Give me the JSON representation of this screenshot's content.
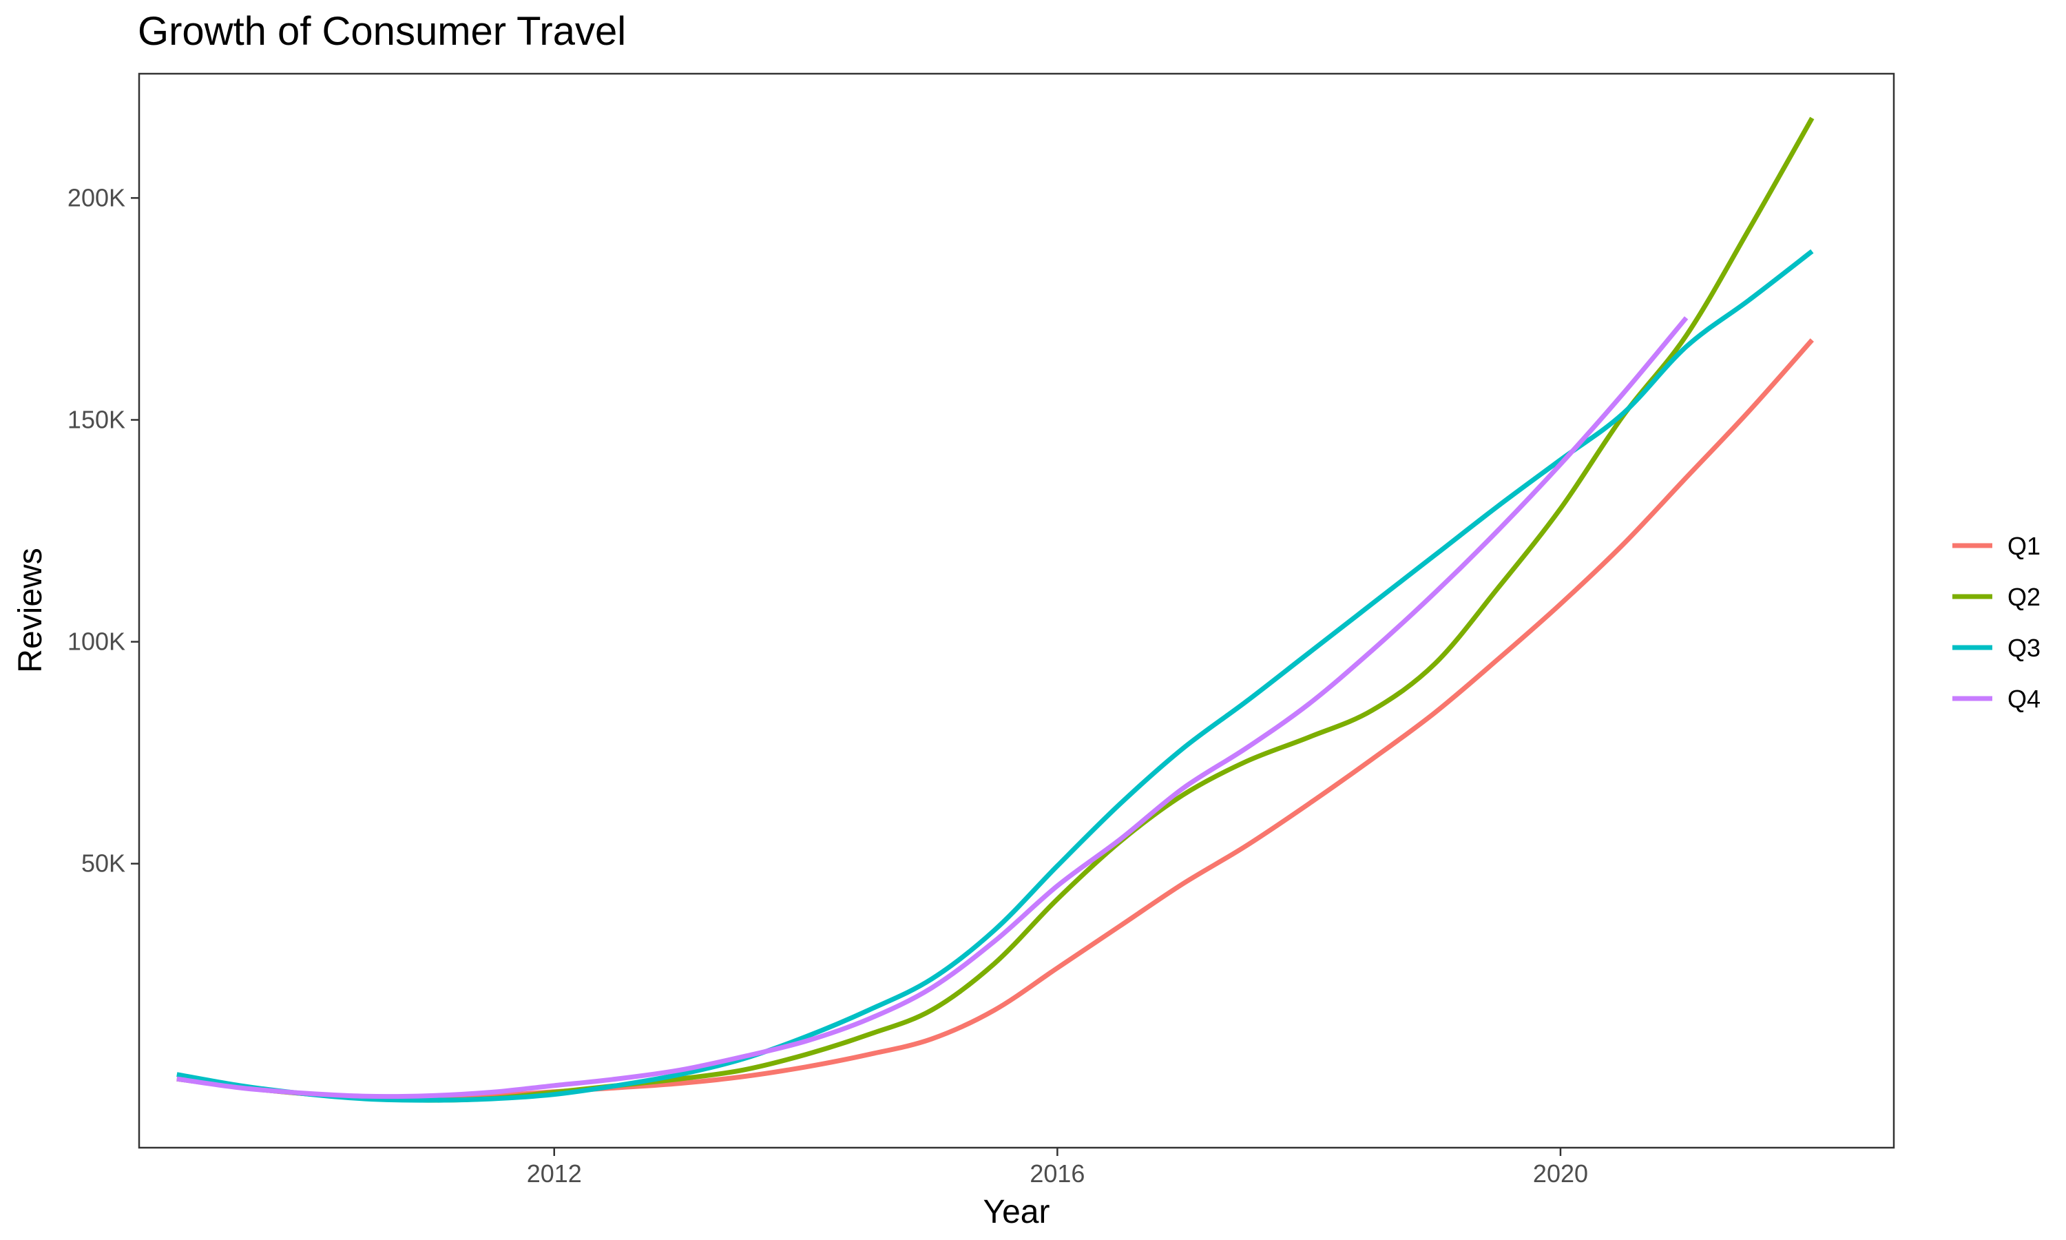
{
  "chart_data": {
    "type": "line",
    "title": "Growth of Consumer Travel",
    "xlabel": "Year",
    "ylabel": "Reviews",
    "xlim": [
      2008.7,
      2022.65
    ],
    "ylim": [
      -14000,
      228000
    ],
    "grid": false,
    "legend_position": "right",
    "x_ticks": [
      {
        "value": 2012,
        "label": "2012"
      },
      {
        "value": 2016,
        "label": "2016"
      },
      {
        "value": 2020,
        "label": "2020"
      }
    ],
    "y_ticks": [
      {
        "value": 50000,
        "label": "50K"
      },
      {
        "value": 100000,
        "label": "100K"
      },
      {
        "value": 150000,
        "label": "150K"
      },
      {
        "value": 200000,
        "label": "200K"
      }
    ],
    "series": [
      {
        "name": "Q1",
        "color": "#F8766D",
        "points": [
          [
            2009.0,
            1500
          ],
          [
            2009.5,
            -400
          ],
          [
            2010.0,
            -1800
          ],
          [
            2010.5,
            -2500
          ],
          [
            2011.0,
            -2600
          ],
          [
            2011.5,
            -2300
          ],
          [
            2012.0,
            -1400
          ],
          [
            2012.5,
            -500
          ],
          [
            2013.0,
            500
          ],
          [
            2013.5,
            2000
          ],
          [
            2014.0,
            4200
          ],
          [
            2014.5,
            7000
          ],
          [
            2015.0,
            10500
          ],
          [
            2015.5,
            17000
          ],
          [
            2016.0,
            26500
          ],
          [
            2016.5,
            36000
          ],
          [
            2017.0,
            45500
          ],
          [
            2017.5,
            54000
          ],
          [
            2018.0,
            63500
          ],
          [
            2018.5,
            73500
          ],
          [
            2019.0,
            84000
          ],
          [
            2019.5,
            96000
          ],
          [
            2020.0,
            108500
          ],
          [
            2020.5,
            122000
          ],
          [
            2021.0,
            137000
          ],
          [
            2021.5,
            152000
          ],
          [
            2022.0,
            168000
          ]
        ]
      },
      {
        "name": "Q2",
        "color": "#7CAE00",
        "points": [
          [
            2009.0,
            1500
          ],
          [
            2009.5,
            -400
          ],
          [
            2010.0,
            -1800
          ],
          [
            2010.5,
            -2800
          ],
          [
            2011.0,
            -3300
          ],
          [
            2011.5,
            -2900
          ],
          [
            2012.0,
            -1500
          ],
          [
            2012.5,
            0
          ],
          [
            2013.0,
            1500
          ],
          [
            2013.5,
            3500
          ],
          [
            2014.0,
            7000
          ],
          [
            2014.5,
            11500
          ],
          [
            2015.0,
            17000
          ],
          [
            2015.5,
            27500
          ],
          [
            2016.0,
            42000
          ],
          [
            2016.5,
            55000
          ],
          [
            2017.0,
            65500
          ],
          [
            2017.5,
            73000
          ],
          [
            2018.0,
            78500
          ],
          [
            2018.5,
            84500
          ],
          [
            2019.0,
            95000
          ],
          [
            2019.5,
            112000
          ],
          [
            2020.0,
            130000
          ],
          [
            2020.5,
            151000
          ],
          [
            2021.0,
            169000
          ],
          [
            2021.5,
            193000
          ],
          [
            2022.0,
            218000
          ]
        ]
      },
      {
        "name": "Q3",
        "color": "#00BFC4",
        "points": [
          [
            2009.0,
            2500
          ],
          [
            2009.5,
            0
          ],
          [
            2010.0,
            -1800
          ],
          [
            2010.5,
            -3000
          ],
          [
            2011.0,
            -3300
          ],
          [
            2011.5,
            -3000
          ],
          [
            2012.0,
            -2000
          ],
          [
            2012.5,
            0
          ],
          [
            2013.0,
            2500
          ],
          [
            2013.5,
            6000
          ],
          [
            2014.0,
            11000
          ],
          [
            2014.5,
            17000
          ],
          [
            2015.0,
            24000
          ],
          [
            2015.5,
            35000
          ],
          [
            2016.0,
            49500
          ],
          [
            2016.5,
            63500
          ],
          [
            2017.0,
            76000
          ],
          [
            2017.5,
            86500
          ],
          [
            2018.0,
            97500
          ],
          [
            2018.5,
            108500
          ],
          [
            2019.0,
            119500
          ],
          [
            2019.5,
            130500
          ],
          [
            2020.0,
            141000
          ],
          [
            2020.5,
            151500
          ],
          [
            2021.0,
            166500
          ],
          [
            2021.5,
            177000
          ],
          [
            2022.0,
            188000
          ]
        ]
      },
      {
        "name": "Q4",
        "color": "#C77CFF",
        "points": [
          [
            2009.0,
            1500
          ],
          [
            2009.5,
            -500
          ],
          [
            2010.0,
            -1700
          ],
          [
            2010.5,
            -2400
          ],
          [
            2011.0,
            -2300
          ],
          [
            2011.5,
            -1500
          ],
          [
            2012.0,
            0
          ],
          [
            2012.5,
            1500
          ],
          [
            2013.0,
            3500
          ],
          [
            2013.5,
            6500
          ],
          [
            2014.0,
            10000
          ],
          [
            2014.5,
            15000
          ],
          [
            2015.0,
            22000
          ],
          [
            2015.5,
            32500
          ],
          [
            2016.0,
            45000
          ],
          [
            2016.5,
            55500
          ],
          [
            2017.0,
            67000
          ],
          [
            2017.5,
            76000
          ],
          [
            2018.0,
            86000
          ],
          [
            2018.5,
            98000
          ],
          [
            2019.0,
            111000
          ],
          [
            2019.5,
            125000
          ],
          [
            2020.0,
            140000
          ],
          [
            2020.5,
            156000
          ],
          [
            2021.0,
            173000
          ]
        ]
      }
    ]
  }
}
